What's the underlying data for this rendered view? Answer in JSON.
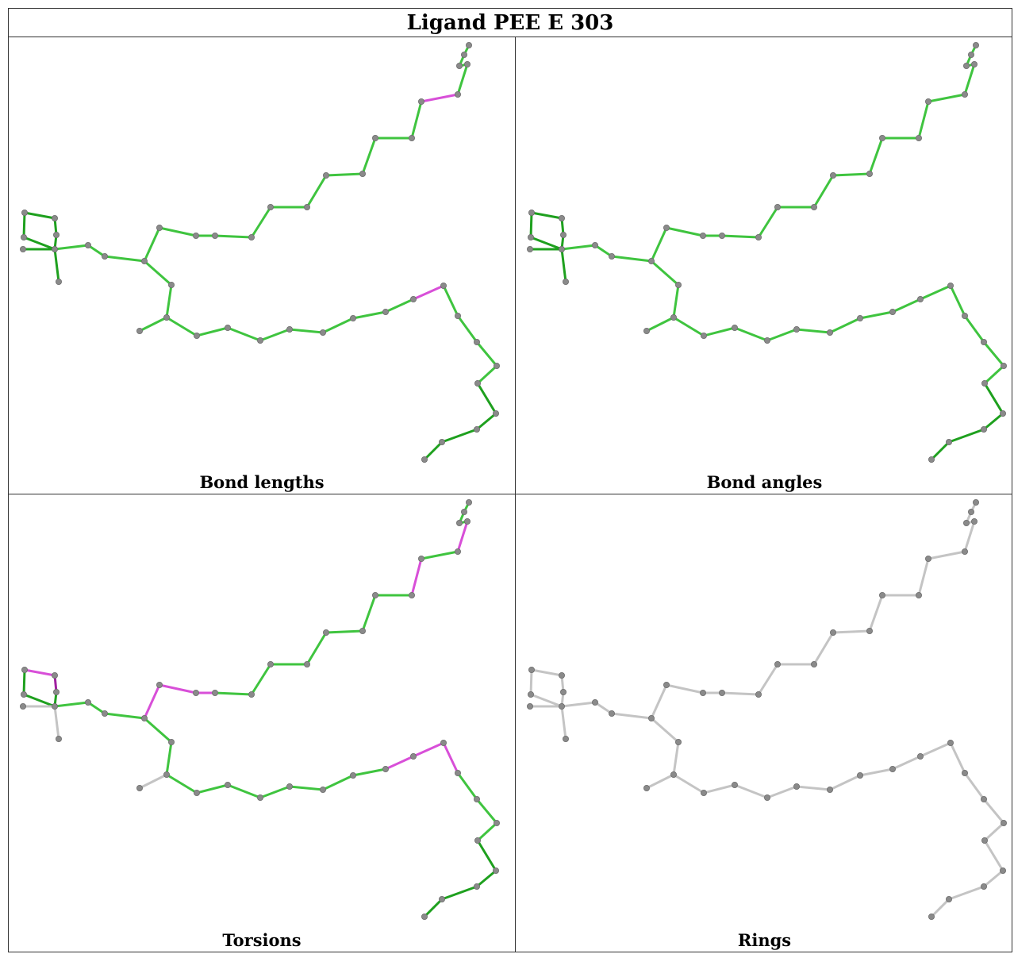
{
  "title": "Ligand PEE E 303",
  "panels": [
    {
      "caption": "Bond lengths"
    },
    {
      "caption": "Bond angles"
    },
    {
      "caption": "Torsions"
    },
    {
      "caption": "Rings"
    }
  ],
  "colors": {
    "green": "#3fc43f",
    "dark_green": "#1ea01e",
    "magenta": "#d84fd8",
    "dark_magenta": "#a020a0",
    "grey_bond": "#c4c4c4",
    "atom": "#8a8a8a"
  }
}
